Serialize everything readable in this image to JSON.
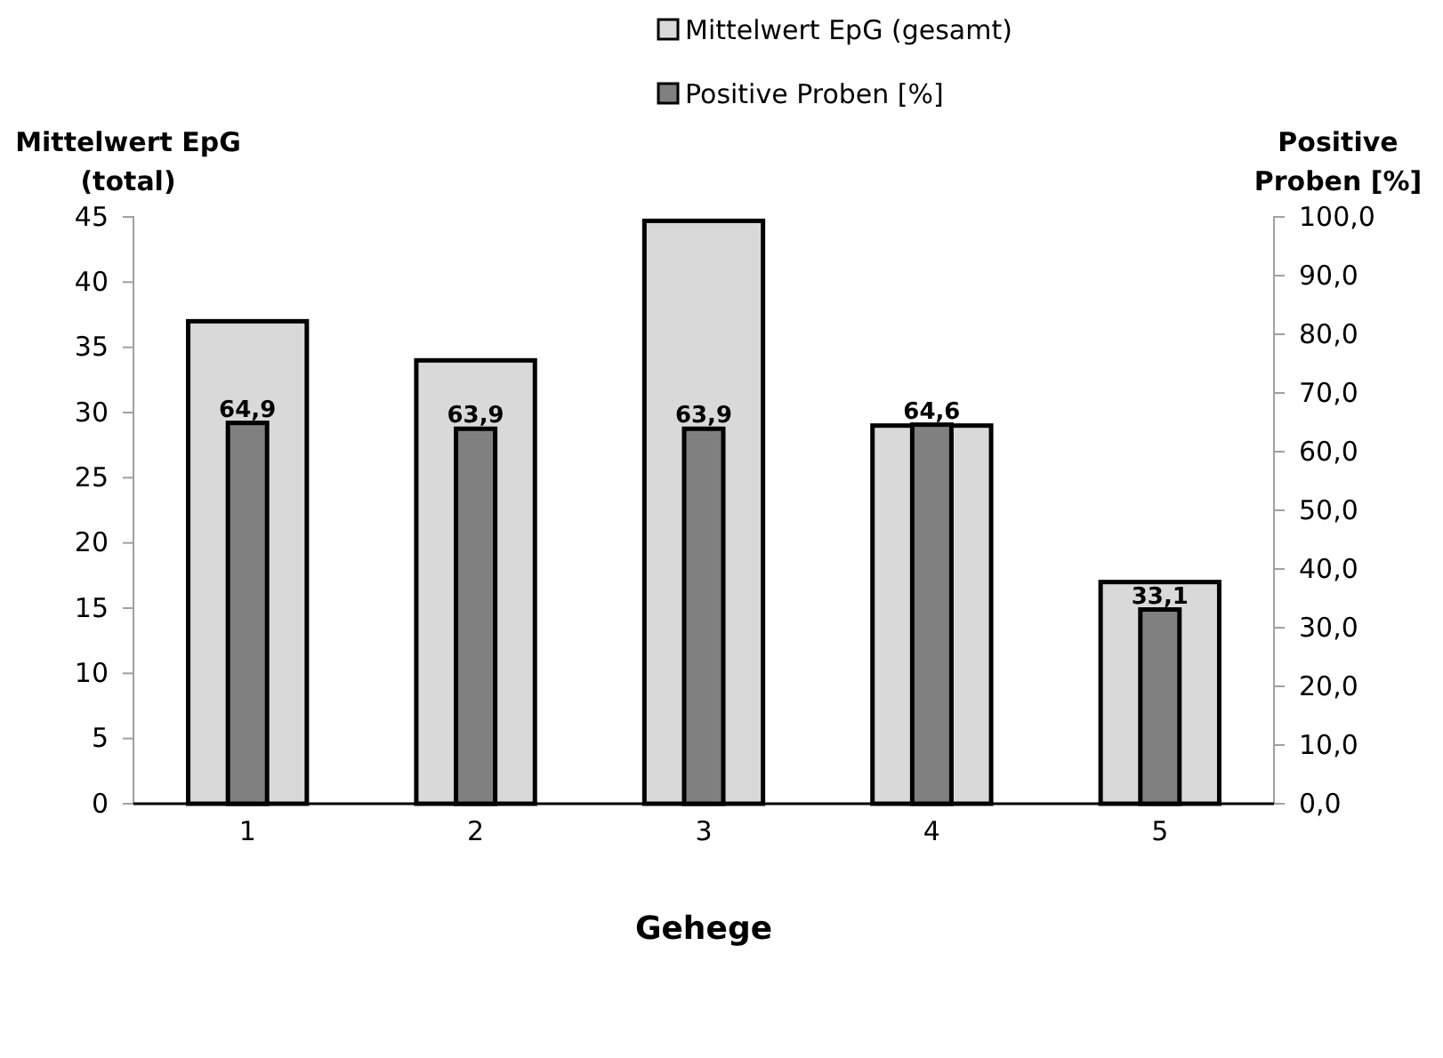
{
  "chart_data": {
    "type": "bar",
    "xlabel": "Gehege",
    "ylabel": "Mittelwert EpG (total)",
    "y2label": "Positive Proben [%]",
    "categories": [
      "1",
      "2",
      "3",
      "4",
      "5"
    ],
    "series": [
      {
        "name": "Mittelwert EpG (gesamt)",
        "color": "#d9d9d9",
        "values": [
          37,
          34,
          44.7,
          29,
          17
        ]
      },
      {
        "name": "Positive Proben [%]",
        "color": "#808080",
        "axis": "y2",
        "values": [
          64.9,
          63.9,
          63.9,
          64.6,
          33.1
        ],
        "value_labels": [
          "64,9",
          "63,9",
          "63,9",
          "64,6",
          "33,1"
        ]
      }
    ],
    "ylim": [
      0,
      45
    ],
    "yticks": [
      0,
      5,
      10,
      15,
      20,
      25,
      30,
      35,
      40,
      45
    ],
    "y2lim": [
      0,
      100
    ],
    "y2ticks": [
      {
        "value": 0,
        "label": "0,0"
      },
      {
        "value": 10,
        "label": "10,0"
      },
      {
        "value": 20,
        "label": "20,0"
      },
      {
        "value": 30,
        "label": "30,0"
      },
      {
        "value": 40,
        "label": "40,0"
      },
      {
        "value": 50,
        "label": "50,0"
      },
      {
        "value": 60,
        "label": "60,0"
      },
      {
        "value": 70,
        "label": "70,0"
      },
      {
        "value": 80,
        "label": "80,0"
      },
      {
        "value": 90,
        "label": "90,0"
      },
      {
        "value": 100,
        "label": "100,0"
      }
    ],
    "legend": "top",
    "grid": false
  }
}
